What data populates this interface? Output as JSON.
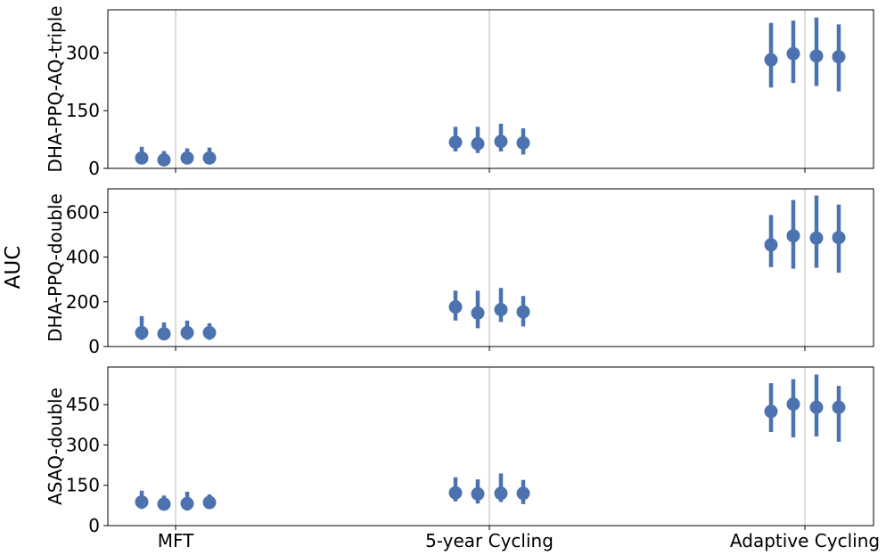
{
  "figure": {
    "ylabel": "AUC",
    "marker_color": "#4c72b0",
    "grid_color": "#b0b0b0"
  },
  "chart_data": {
    "type": "scatter",
    "categories": [
      "MFT",
      "5-year Cycling",
      "Adaptive Cycling"
    ],
    "shared_ylabel": "AUC",
    "panels": [
      {
        "ylabel": "DHA-PPQ-AQ-triple",
        "ylim": [
          0,
          412
        ],
        "yticks": [
          0,
          150,
          300
        ],
        "groups": [
          {
            "category": "MFT",
            "points": [
              {
                "value": 27,
                "low": 12,
                "high": 56
              },
              {
                "value": 22,
                "low": 10,
                "high": 45
              },
              {
                "value": 27,
                "low": 12,
                "high": 52
              },
              {
                "value": 27,
                "low": 12,
                "high": 54
              }
            ]
          },
          {
            "category": "5-year Cycling",
            "points": [
              {
                "value": 68,
                "low": 44,
                "high": 108
              },
              {
                "value": 64,
                "low": 40,
                "high": 108
              },
              {
                "value": 70,
                "low": 44,
                "high": 116
              },
              {
                "value": 66,
                "low": 36,
                "high": 104
              }
            ]
          },
          {
            "category": "Adaptive Cycling",
            "points": [
              {
                "value": 282,
                "low": 210,
                "high": 378
              },
              {
                "value": 298,
                "low": 222,
                "high": 384
              },
              {
                "value": 292,
                "low": 214,
                "high": 392
              },
              {
                "value": 290,
                "low": 200,
                "high": 374
              }
            ]
          }
        ]
      },
      {
        "ylabel": "DHA-PPQ-double",
        "ylim": [
          0,
          705
        ],
        "yticks": [
          0,
          200,
          400,
          600
        ],
        "groups": [
          {
            "category": "MFT",
            "points": [
              {
                "value": 62,
                "low": 30,
                "high": 136
              },
              {
                "value": 57,
                "low": 28,
                "high": 108
              },
              {
                "value": 62,
                "low": 30,
                "high": 116
              },
              {
                "value": 62,
                "low": 30,
                "high": 104
              }
            ]
          },
          {
            "category": "5-year Cycling",
            "points": [
              {
                "value": 177,
                "low": 116,
                "high": 250
              },
              {
                "value": 150,
                "low": 82,
                "high": 250
              },
              {
                "value": 165,
                "low": 110,
                "high": 262
              },
              {
                "value": 155,
                "low": 90,
                "high": 226
              }
            ]
          },
          {
            "category": "Adaptive Cycling",
            "points": [
              {
                "value": 455,
                "low": 355,
                "high": 588
              },
              {
                "value": 495,
                "low": 348,
                "high": 655
              },
              {
                "value": 485,
                "low": 352,
                "high": 675
              },
              {
                "value": 487,
                "low": 330,
                "high": 635
              }
            ]
          }
        ]
      },
      {
        "ylabel": "ASAQ-double",
        "ylim": [
          0,
          590
        ],
        "yticks": [
          0,
          150,
          300,
          450
        ],
        "groups": [
          {
            "category": "MFT",
            "points": [
              {
                "value": 88,
                "low": 62,
                "high": 130
              },
              {
                "value": 80,
                "low": 58,
                "high": 112
              },
              {
                "value": 82,
                "low": 56,
                "high": 126
              },
              {
                "value": 86,
                "low": 62,
                "high": 116
              }
            ]
          },
          {
            "category": "5-year Cycling",
            "points": [
              {
                "value": 122,
                "low": 90,
                "high": 180
              },
              {
                "value": 118,
                "low": 82,
                "high": 172
              },
              {
                "value": 120,
                "low": 88,
                "high": 194
              },
              {
                "value": 120,
                "low": 80,
                "high": 170
              }
            ]
          },
          {
            "category": "Adaptive Cycling",
            "points": [
              {
                "value": 425,
                "low": 348,
                "high": 530
              },
              {
                "value": 452,
                "low": 328,
                "high": 545
              },
              {
                "value": 440,
                "low": 332,
                "high": 562
              },
              {
                "value": 440,
                "low": 312,
                "high": 520
              }
            ]
          }
        ]
      }
    ]
  }
}
